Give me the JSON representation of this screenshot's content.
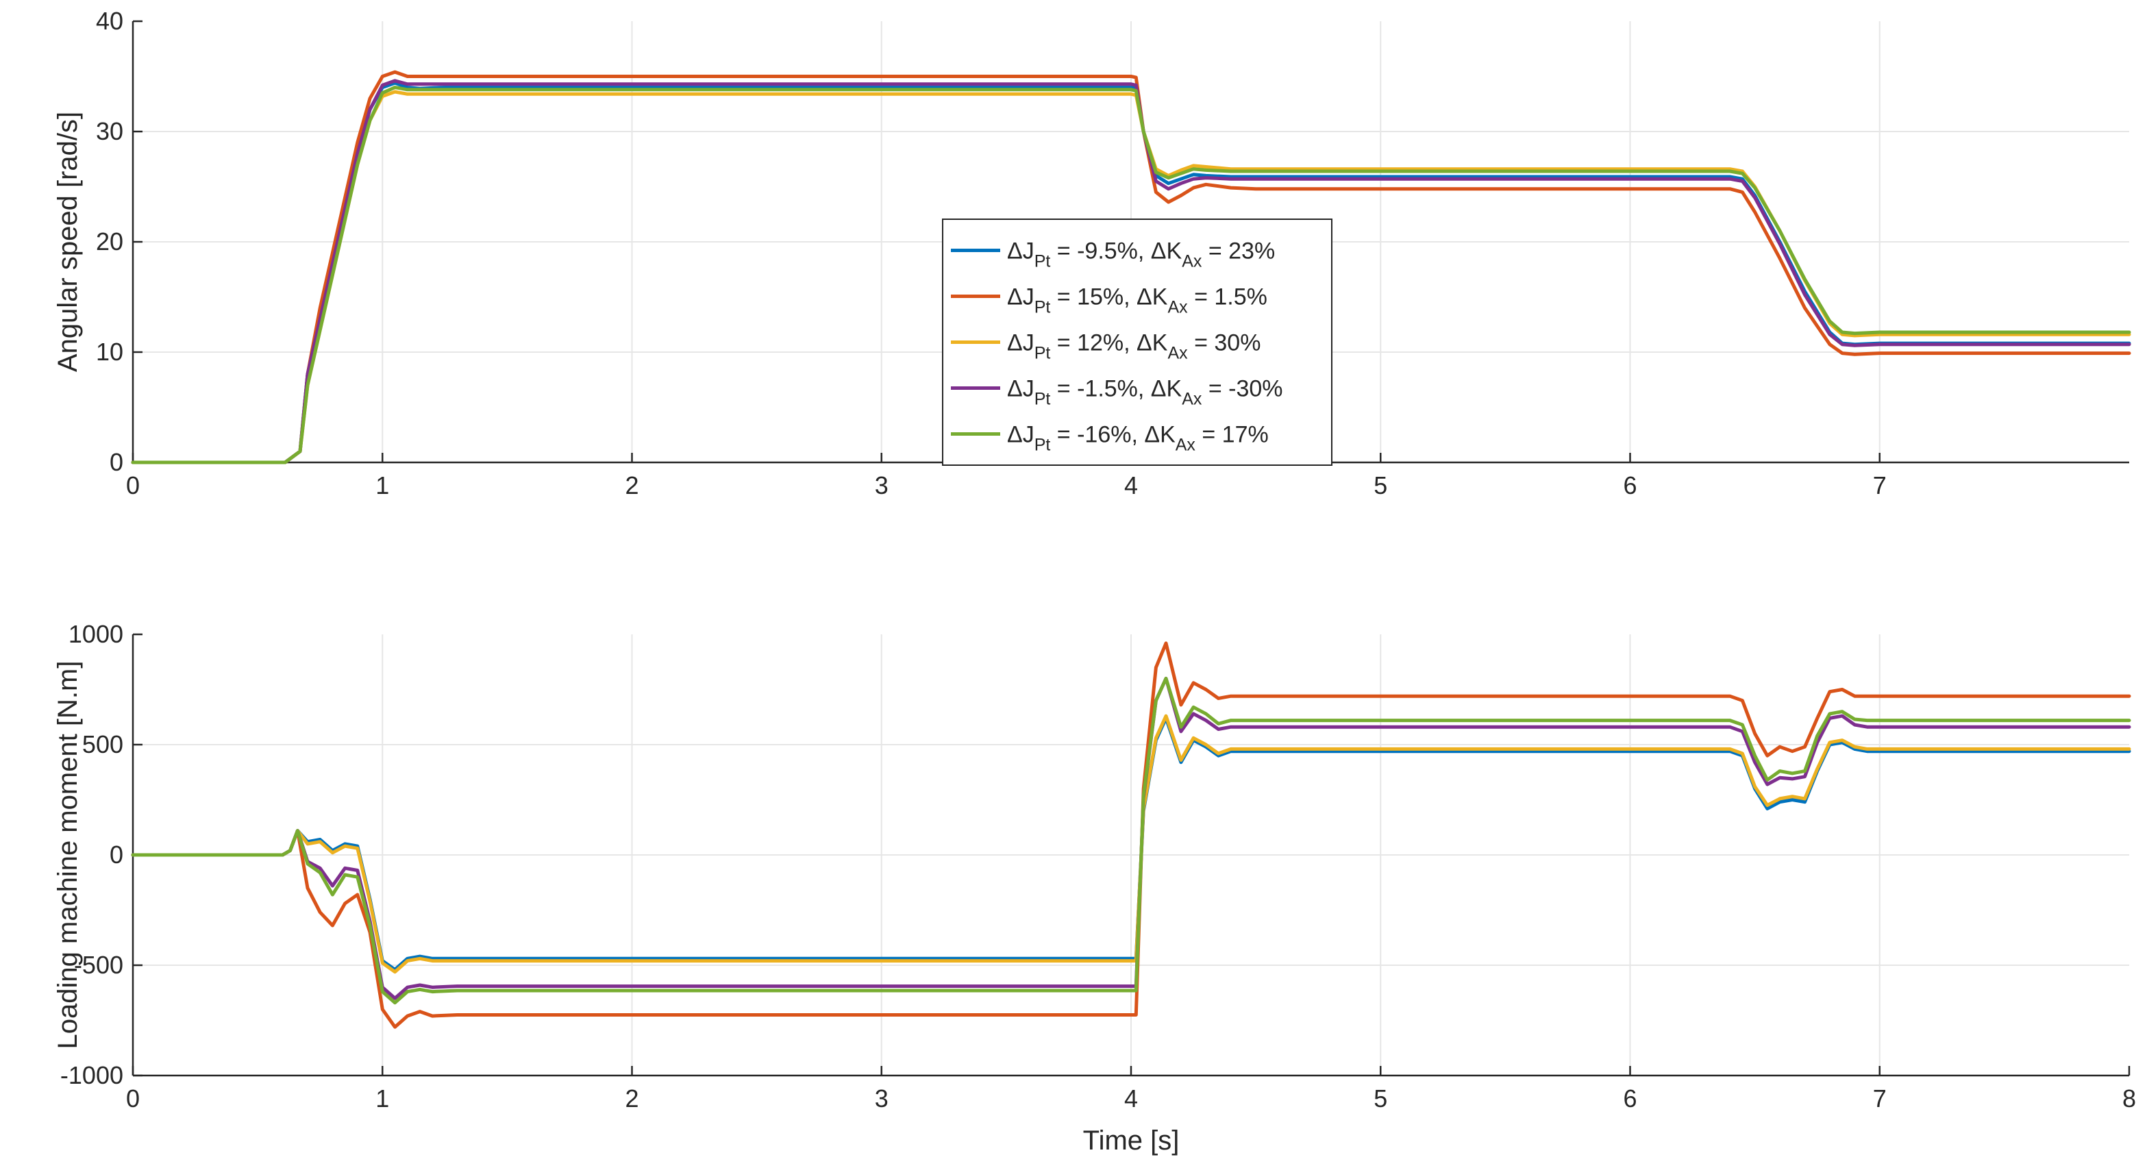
{
  "chart_data": [
    {
      "type": "line",
      "title": "",
      "xlabel": "",
      "ylabel": "Angular speed [rad/s]",
      "xlim": [
        0,
        8
      ],
      "ylim": [
        0,
        40
      ],
      "xticks": [
        0,
        1,
        2,
        3,
        4,
        5,
        6,
        7
      ],
      "yticks": [
        0,
        10,
        20,
        30,
        40
      ],
      "grid": true,
      "legend": {
        "placement": "center",
        "entries": [
          {
            "parts": [
              {
                "t": "ΔJ"
              },
              {
                "t": "Pt",
                "sub": true
              },
              {
                "t": " = -9.5%, ΔK"
              },
              {
                "t": "Ax",
                "sub": true
              },
              {
                "t": " = 23%"
              }
            ]
          },
          {
            "parts": [
              {
                "t": "ΔJ"
              },
              {
                "t": "Pt",
                "sub": true
              },
              {
                "t": " = 15%, ΔK"
              },
              {
                "t": "Ax",
                "sub": true
              },
              {
                "t": " = 1.5%"
              }
            ]
          },
          {
            "parts": [
              {
                "t": "ΔJ"
              },
              {
                "t": "Pt",
                "sub": true
              },
              {
                "t": " = 12%, ΔK"
              },
              {
                "t": "Ax",
                "sub": true
              },
              {
                "t": " = 30%"
              }
            ]
          },
          {
            "parts": [
              {
                "t": "ΔJ"
              },
              {
                "t": "Pt",
                "sub": true
              },
              {
                "t": " = -1.5%, ΔK"
              },
              {
                "t": "Ax",
                "sub": true
              },
              {
                "t": " = -30%"
              }
            ]
          },
          {
            "parts": [
              {
                "t": "ΔJ"
              },
              {
                "t": "Pt",
                "sub": true
              },
              {
                "t": " = -16%, ΔK"
              },
              {
                "t": "Ax",
                "sub": true
              },
              {
                "t": " = 17%"
              }
            ]
          }
        ]
      },
      "series": [
        {
          "color": "#0072BD",
          "x": [
            0,
            0.61,
            0.67,
            0.7,
            0.75,
            0.8,
            0.85,
            0.9,
            0.95,
            1.0,
            1.05,
            1.1,
            1.15,
            1.25,
            1.5,
            2.0,
            3.0,
            4.0,
            4.02,
            4.05,
            4.1,
            4.15,
            4.2,
            4.25,
            4.3,
            4.4,
            4.5,
            5.0,
            6.0,
            6.4,
            6.45,
            6.5,
            6.6,
            6.7,
            6.8,
            6.85,
            6.9,
            7.0,
            7.5,
            8.0
          ],
          "y": [
            0,
            0,
            1,
            8,
            13,
            18,
            23,
            28,
            32,
            34.0,
            34.4,
            34.0,
            33.9,
            34.0,
            34.0,
            34.0,
            34.0,
            34.0,
            33.9,
            30,
            26,
            25.3,
            25.7,
            26.1,
            26.0,
            25.9,
            25.9,
            25.9,
            25.9,
            25.9,
            25.7,
            24.2,
            20,
            15.5,
            11.8,
            10.8,
            10.7,
            10.8,
            10.8,
            10.8
          ]
        },
        {
          "color": "#D95319",
          "x": [
            0,
            0.61,
            0.67,
            0.7,
            0.75,
            0.8,
            0.85,
            0.9,
            0.95,
            1.0,
            1.05,
            1.1,
            1.15,
            1.25,
            1.5,
            2.0,
            3.0,
            4.0,
            4.02,
            4.05,
            4.1,
            4.15,
            4.2,
            4.25,
            4.3,
            4.4,
            4.5,
            5.0,
            6.0,
            6.4,
            6.45,
            6.5,
            6.6,
            6.7,
            6.8,
            6.85,
            6.9,
            7.0,
            7.5,
            8.0
          ],
          "y": [
            0,
            0,
            1,
            8,
            14,
            19,
            24,
            29,
            33,
            35.0,
            35.4,
            35.0,
            35.0,
            35.0,
            35.0,
            35.0,
            35.0,
            35.0,
            34.9,
            30,
            24.5,
            23.6,
            24.2,
            24.9,
            25.2,
            24.9,
            24.8,
            24.8,
            24.8,
            24.8,
            24.5,
            22.7,
            18.5,
            14,
            10.7,
            9.9,
            9.8,
            9.9,
            9.9,
            9.9
          ]
        },
        {
          "color": "#EDB120",
          "x": [
            0,
            0.61,
            0.67,
            0.7,
            0.75,
            0.8,
            0.85,
            0.9,
            0.95,
            1.0,
            1.05,
            1.1,
            1.15,
            1.25,
            1.5,
            2.0,
            3.0,
            4.0,
            4.02,
            4.05,
            4.1,
            4.15,
            4.2,
            4.25,
            4.3,
            4.4,
            4.5,
            5.0,
            6.0,
            6.4,
            6.45,
            6.5,
            6.6,
            6.7,
            6.8,
            6.85,
            6.9,
            7.0,
            7.5,
            8.0
          ],
          "y": [
            0,
            0,
            1,
            7,
            12,
            17,
            22,
            27,
            31,
            33.2,
            33.6,
            33.4,
            33.4,
            33.4,
            33.4,
            33.4,
            33.4,
            33.4,
            33.3,
            30,
            26.6,
            26.0,
            26.5,
            26.9,
            26.8,
            26.6,
            26.6,
            26.6,
            26.6,
            26.6,
            26.4,
            25.0,
            21,
            16.5,
            12.6,
            11.6,
            11.5,
            11.6,
            11.6,
            11.6
          ]
        },
        {
          "color": "#7E2F8E",
          "x": [
            0,
            0.61,
            0.67,
            0.7,
            0.75,
            0.8,
            0.85,
            0.9,
            0.95,
            1.0,
            1.05,
            1.1,
            1.15,
            1.25,
            1.5,
            2.0,
            3.0,
            4.0,
            4.02,
            4.05,
            4.1,
            4.15,
            4.2,
            4.25,
            4.3,
            4.4,
            4.5,
            5.0,
            6.0,
            6.4,
            6.45,
            6.5,
            6.6,
            6.7,
            6.8,
            6.85,
            6.9,
            7.0,
            7.5,
            8.0
          ],
          "y": [
            0,
            0,
            1,
            8,
            13,
            18,
            23,
            28,
            32,
            34.2,
            34.6,
            34.3,
            34.3,
            34.3,
            34.3,
            34.3,
            34.3,
            34.3,
            34.2,
            30,
            25.5,
            24.8,
            25.3,
            25.7,
            25.8,
            25.7,
            25.7,
            25.7,
            25.7,
            25.7,
            25.5,
            24.0,
            19.8,
            15.2,
            11.6,
            10.7,
            10.6,
            10.7,
            10.7,
            10.7
          ]
        },
        {
          "color": "#77AC30",
          "x": [
            0,
            0.61,
            0.67,
            0.7,
            0.75,
            0.8,
            0.85,
            0.9,
            0.95,
            1.0,
            1.05,
            1.1,
            1.15,
            1.25,
            1.5,
            2.0,
            3.0,
            4.0,
            4.02,
            4.05,
            4.1,
            4.15,
            4.2,
            4.25,
            4.3,
            4.4,
            4.5,
            5.0,
            6.0,
            6.4,
            6.45,
            6.5,
            6.6,
            6.7,
            6.8,
            6.85,
            6.9,
            7.0,
            7.5,
            8.0
          ],
          "y": [
            0,
            0,
            1,
            7,
            12,
            17,
            22,
            27,
            31,
            33.5,
            34.0,
            33.8,
            33.8,
            33.8,
            33.8,
            33.8,
            33.8,
            33.8,
            33.7,
            30,
            26.3,
            25.8,
            26.2,
            26.6,
            26.5,
            26.4,
            26.4,
            26.4,
            26.4,
            26.4,
            26.2,
            24.9,
            21,
            16.6,
            12.8,
            11.8,
            11.7,
            11.8,
            11.8,
            11.8
          ]
        }
      ]
    },
    {
      "type": "line",
      "title": "",
      "xlabel": "Time [s]",
      "ylabel": "Loading machine moment [N.m]",
      "xlim": [
        0,
        8
      ],
      "ylim": [
        -1000,
        1000
      ],
      "xticks": [
        0,
        1,
        2,
        3,
        4,
        5,
        6,
        7,
        8
      ],
      "yticks": [
        -1000,
        -500,
        0,
        500,
        1000
      ],
      "grid": true,
      "series": [
        {
          "color": "#0072BD",
          "x": [
            0,
            0.6,
            0.63,
            0.66,
            0.7,
            0.75,
            0.8,
            0.85,
            0.9,
            0.95,
            1.0,
            1.05,
            1.1,
            1.15,
            1.2,
            1.3,
            1.5,
            2.0,
            3.0,
            4.0,
            4.02,
            4.05,
            4.1,
            4.14,
            4.2,
            4.25,
            4.3,
            4.35,
            4.4,
            4.5,
            5.0,
            6.0,
            6.4,
            6.45,
            6.5,
            6.55,
            6.6,
            6.65,
            6.7,
            6.75,
            6.8,
            6.85,
            6.9,
            6.95,
            7.0,
            7.5,
            8.0
          ],
          "y": [
            0,
            0,
            20,
            110,
            60,
            70,
            20,
            50,
            40,
            -200,
            -480,
            -520,
            -470,
            -460,
            -470,
            -470,
            -470,
            -470,
            -470,
            -470,
            -470,
            200,
            520,
            620,
            420,
            520,
            490,
            450,
            470,
            470,
            470,
            470,
            470,
            450,
            300,
            210,
            240,
            250,
            240,
            380,
            500,
            510,
            480,
            470,
            470,
            470,
            470
          ]
        },
        {
          "color": "#D95319",
          "x": [
            0,
            0.6,
            0.63,
            0.66,
            0.7,
            0.75,
            0.8,
            0.85,
            0.9,
            0.95,
            1.0,
            1.05,
            1.1,
            1.15,
            1.2,
            1.3,
            1.5,
            2.0,
            3.0,
            4.0,
            4.02,
            4.05,
            4.1,
            4.14,
            4.2,
            4.25,
            4.3,
            4.35,
            4.4,
            4.5,
            5.0,
            6.0,
            6.4,
            6.45,
            6.5,
            6.55,
            6.6,
            6.65,
            6.7,
            6.75,
            6.8,
            6.85,
            6.9,
            6.95,
            7.0,
            7.5,
            8.0
          ],
          "y": [
            0,
            0,
            20,
            110,
            -150,
            -260,
            -320,
            -220,
            -180,
            -350,
            -700,
            -780,
            -730,
            -710,
            -730,
            -725,
            -725,
            -725,
            -725,
            -725,
            -725,
            300,
            850,
            960,
            680,
            780,
            750,
            710,
            720,
            720,
            720,
            720,
            720,
            700,
            550,
            450,
            490,
            470,
            490,
            620,
            740,
            750,
            720,
            720,
            720,
            720,
            720
          ]
        },
        {
          "color": "#EDB120",
          "x": [
            0,
            0.6,
            0.63,
            0.66,
            0.7,
            0.75,
            0.8,
            0.85,
            0.9,
            0.95,
            1.0,
            1.05,
            1.1,
            1.15,
            1.2,
            1.3,
            1.5,
            2.0,
            3.0,
            4.0,
            4.02,
            4.05,
            4.1,
            4.14,
            4.2,
            4.25,
            4.3,
            4.35,
            4.4,
            4.5,
            5.0,
            6.0,
            6.4,
            6.45,
            6.5,
            6.55,
            6.6,
            6.65,
            6.7,
            6.75,
            6.8,
            6.85,
            6.9,
            6.95,
            7.0,
            7.5,
            8.0
          ],
          "y": [
            0,
            0,
            20,
            110,
            50,
            60,
            10,
            40,
            30,
            -210,
            -490,
            -530,
            -480,
            -470,
            -480,
            -480,
            -480,
            -480,
            -480,
            -480,
            -480,
            210,
            530,
            630,
            430,
            530,
            500,
            460,
            480,
            480,
            480,
            480,
            480,
            460,
            310,
            225,
            255,
            265,
            255,
            390,
            510,
            520,
            490,
            480,
            480,
            480,
            480
          ]
        },
        {
          "color": "#7E2F8E",
          "x": [
            0,
            0.6,
            0.63,
            0.66,
            0.7,
            0.75,
            0.8,
            0.85,
            0.9,
            0.95,
            1.0,
            1.05,
            1.1,
            1.15,
            1.2,
            1.3,
            1.5,
            2.0,
            3.0,
            4.0,
            4.02,
            4.05,
            4.1,
            4.14,
            4.2,
            4.25,
            4.3,
            4.35,
            4.4,
            4.5,
            5.0,
            6.0,
            6.4,
            6.45,
            6.5,
            6.55,
            6.6,
            6.65,
            6.7,
            6.75,
            6.8,
            6.85,
            6.9,
            6.95,
            7.0,
            7.5,
            8.0
          ],
          "y": [
            0,
            0,
            20,
            110,
            -30,
            -60,
            -140,
            -60,
            -70,
            -300,
            -600,
            -650,
            -600,
            -590,
            -600,
            -595,
            -595,
            -595,
            -595,
            -595,
            -595,
            260,
            700,
            800,
            560,
            640,
            610,
            570,
            580,
            580,
            580,
            580,
            580,
            560,
            420,
            320,
            350,
            345,
            355,
            510,
            620,
            630,
            590,
            580,
            580,
            580,
            580
          ]
        },
        {
          "color": "#77AC30",
          "x": [
            0,
            0.6,
            0.63,
            0.66,
            0.7,
            0.75,
            0.8,
            0.85,
            0.9,
            0.95,
            1.0,
            1.05,
            1.1,
            1.15,
            1.2,
            1.3,
            1.5,
            2.0,
            3.0,
            4.0,
            4.02,
            4.05,
            4.1,
            4.14,
            4.2,
            4.25,
            4.3,
            4.35,
            4.4,
            4.5,
            5.0,
            6.0,
            6.4,
            6.45,
            6.5,
            6.55,
            6.6,
            6.65,
            6.7,
            6.75,
            6.8,
            6.85,
            6.9,
            6.95,
            7.0,
            7.5,
            8.0
          ],
          "y": [
            0,
            0,
            20,
            110,
            -40,
            -80,
            -180,
            -90,
            -100,
            -320,
            -620,
            -670,
            -620,
            -610,
            -620,
            -615,
            -615,
            -615,
            -615,
            -615,
            -615,
            270,
            700,
            800,
            580,
            670,
            640,
            595,
            610,
            610,
            610,
            610,
            610,
            590,
            450,
            340,
            380,
            370,
            380,
            540,
            640,
            650,
            615,
            610,
            610,
            610,
            610
          ]
        }
      ]
    }
  ]
}
